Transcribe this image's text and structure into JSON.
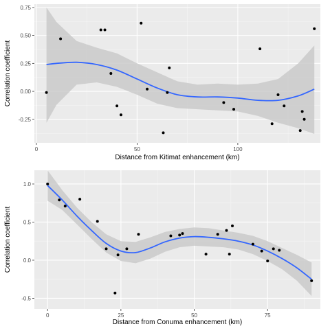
{
  "colors": {
    "panel": "#ebebeb",
    "grid_major": "#ffffff",
    "grid_minor": "#f5f5f5",
    "ribbon": "#c8c8c8",
    "smooth_line": "#3366ff",
    "points": "#000000"
  },
  "chart_data": [
    {
      "type": "scatter",
      "xlabel": "Distance from Kitimat enhancement (km)",
      "ylabel": "Correlation coefficient",
      "xlim": [
        -1,
        141
      ],
      "ylim": [
        -0.46,
        0.78
      ],
      "x_ticks": [
        0,
        50,
        100
      ],
      "y_ticks": [
        -0.25,
        0.0,
        0.25,
        0.5,
        0.75
      ],
      "x_tick_labels": [
        "0",
        "50",
        "100"
      ],
      "y_tick_labels": [
        "-0.25",
        "0.00",
        "0.25",
        "0.50",
        "0.75"
      ],
      "grid": true,
      "points": [
        {
          "x": 5,
          "y": -0.01
        },
        {
          "x": 12,
          "y": 0.47
        },
        {
          "x": 32,
          "y": 0.55
        },
        {
          "x": 34,
          "y": 0.55
        },
        {
          "x": 37,
          "y": 0.16
        },
        {
          "x": 40,
          "y": -0.13
        },
        {
          "x": 42,
          "y": -0.21
        },
        {
          "x": 52,
          "y": 0.61
        },
        {
          "x": 55,
          "y": 0.02
        },
        {
          "x": 63,
          "y": -0.37
        },
        {
          "x": 65,
          "y": -0.01
        },
        {
          "x": 66,
          "y": 0.21
        },
        {
          "x": 93,
          "y": -0.1
        },
        {
          "x": 98,
          "y": -0.16
        },
        {
          "x": 111,
          "y": 0.38
        },
        {
          "x": 117,
          "y": -0.29
        },
        {
          "x": 120,
          "y": -0.03
        },
        {
          "x": 123,
          "y": -0.13
        },
        {
          "x": 131,
          "y": -0.35
        },
        {
          "x": 132,
          "y": -0.18
        },
        {
          "x": 133,
          "y": -0.25
        },
        {
          "x": 138,
          "y": 0.56
        }
      ],
      "smooth": {
        "x": [
          5,
          10,
          20,
          30,
          40,
          50,
          60,
          70,
          80,
          90,
          100,
          110,
          120,
          130,
          138
        ],
        "y": [
          0.24,
          0.25,
          0.26,
          0.24,
          0.19,
          0.11,
          0.03,
          -0.03,
          -0.05,
          -0.05,
          -0.06,
          -0.08,
          -0.08,
          -0.04,
          0.02
        ],
        "lower": [
          -0.28,
          -0.12,
          0.06,
          0.08,
          0.04,
          -0.03,
          -0.11,
          -0.15,
          -0.16,
          -0.17,
          -0.18,
          -0.22,
          -0.28,
          -0.33,
          -0.38
        ],
        "upper": [
          0.75,
          0.62,
          0.45,
          0.39,
          0.34,
          0.25,
          0.17,
          0.09,
          0.06,
          0.07,
          0.06,
          0.07,
          0.11,
          0.25,
          0.41
        ]
      }
    },
    {
      "type": "scatter",
      "xlabel": "Distance from Conuma enhancement (km)",
      "ylabel": "Correlation coefficient",
      "xlim": [
        -4.5,
        93
      ],
      "ylim": [
        -0.64,
        1.18
      ],
      "x_ticks": [
        0,
        25,
        50,
        75
      ],
      "y_ticks": [
        -0.5,
        0.0,
        0.5,
        1.0
      ],
      "x_tick_labels": [
        "0",
        "25",
        "50",
        "75"
      ],
      "y_tick_labels": [
        "-0.5",
        "0.0",
        "0.5",
        "1.0"
      ],
      "grid": true,
      "points": [
        {
          "x": 0,
          "y": 1.0
        },
        {
          "x": 4,
          "y": 0.79
        },
        {
          "x": 6,
          "y": 0.71
        },
        {
          "x": 11,
          "y": 0.8
        },
        {
          "x": 17,
          "y": 0.51
        },
        {
          "x": 20,
          "y": 0.15
        },
        {
          "x": 23,
          "y": -0.43
        },
        {
          "x": 24,
          "y": 0.07
        },
        {
          "x": 27,
          "y": 0.15
        },
        {
          "x": 31,
          "y": 0.34
        },
        {
          "x": 42,
          "y": 0.32
        },
        {
          "x": 45,
          "y": 0.33
        },
        {
          "x": 46,
          "y": 0.35
        },
        {
          "x": 54,
          "y": 0.08
        },
        {
          "x": 58,
          "y": 0.34
        },
        {
          "x": 61,
          "y": 0.39
        },
        {
          "x": 62,
          "y": 0.08
        },
        {
          "x": 63,
          "y": 0.45
        },
        {
          "x": 70,
          "y": 0.21
        },
        {
          "x": 73,
          "y": 0.12
        },
        {
          "x": 75,
          "y": -0.01
        },
        {
          "x": 77,
          "y": 0.15
        },
        {
          "x": 79,
          "y": 0.13
        },
        {
          "x": 90,
          "y": -0.27
        }
      ],
      "smooth": {
        "x": [
          0,
          5,
          10,
          15,
          20,
          25,
          30,
          35,
          40,
          45,
          50,
          55,
          60,
          65,
          70,
          75,
          80,
          85,
          90
        ],
        "y": [
          0.98,
          0.79,
          0.58,
          0.39,
          0.22,
          0.12,
          0.1,
          0.16,
          0.24,
          0.29,
          0.31,
          0.3,
          0.28,
          0.25,
          0.2,
          0.12,
          0.02,
          -0.1,
          -0.25
        ],
        "lower": [
          0.78,
          0.66,
          0.47,
          0.28,
          0.1,
          -0.01,
          -0.04,
          0.02,
          0.11,
          0.17,
          0.19,
          0.18,
          0.17,
          0.14,
          0.08,
          -0.01,
          -0.12,
          -0.27,
          -0.47
        ],
        "upper": [
          1.18,
          0.92,
          0.69,
          0.5,
          0.34,
          0.25,
          0.24,
          0.3,
          0.37,
          0.41,
          0.43,
          0.42,
          0.39,
          0.36,
          0.32,
          0.25,
          0.16,
          0.07,
          -0.03
        ]
      }
    }
  ]
}
